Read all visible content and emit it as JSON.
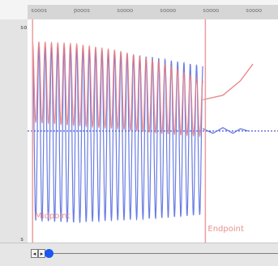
{
  "ruler": {
    "labels": [
      "sooos",
      "pooos",
      "soooo",
      "soooo",
      "soooo",
      "soooo"
    ]
  },
  "axis": {
    "y_top_label": "so",
    "y_bottom_label": "s"
  },
  "markers": [
    {
      "label": "Midpoint",
      "color": "#e89090"
    },
    {
      "label": "Endpoint",
      "color": "#e89090"
    }
  ],
  "icons": {
    "prev": "step-back-icon",
    "next": "step-forward-icon"
  },
  "colors": {
    "blue": "#5a6fe0",
    "red": "#e87c82",
    "baseline": "#1830c8",
    "marker": "#ee9b9b"
  },
  "chart_data": {
    "type": "line",
    "title": "",
    "x": {
      "range": [
        0,
        310
      ],
      "grid": false
    },
    "y": {
      "range": [
        -1,
        1
      ],
      "grid": false
    },
    "series": [
      {
        "color": "#5a6fe0",
        "style": "oscillation",
        "cycles": 27,
        "x_start": 0.02,
        "x_end": 0.7,
        "amp_top": [
          0.75,
          0.75,
          0.7,
          0.65,
          0.58
        ],
        "amp_bottom": [
          -0.8,
          -0.82,
          -0.8,
          -0.78,
          -0.75
        ]
      },
      {
        "color": "#e87c82",
        "style": "oscillation",
        "cycles": 27,
        "x_start": 0.02,
        "x_end": 0.7,
        "amp_top": [
          0.8,
          0.78,
          0.72,
          0.62,
          0.45
        ],
        "amp_bottom": [
          0.08,
          0.05,
          0.02,
          -0.02,
          -0.05
        ]
      },
      {
        "color": "#e87c82",
        "style": "trend",
        "points": [
          [
            0.7,
            0.28
          ],
          [
            0.78,
            0.32
          ],
          [
            0.85,
            0.45
          ],
          [
            0.9,
            0.6
          ]
        ]
      },
      {
        "color": "#5a6fe0",
        "style": "damped",
        "points": [
          [
            0.7,
            0.02
          ],
          [
            0.74,
            -0.02
          ],
          [
            0.78,
            0.03
          ],
          [
            0.82,
            -0.02
          ],
          [
            0.85,
            0.02
          ],
          [
            0.88,
            0.0
          ]
        ]
      }
    ],
    "baseline": 0,
    "marker_positions": [
      0.02,
      0.71
    ]
  }
}
